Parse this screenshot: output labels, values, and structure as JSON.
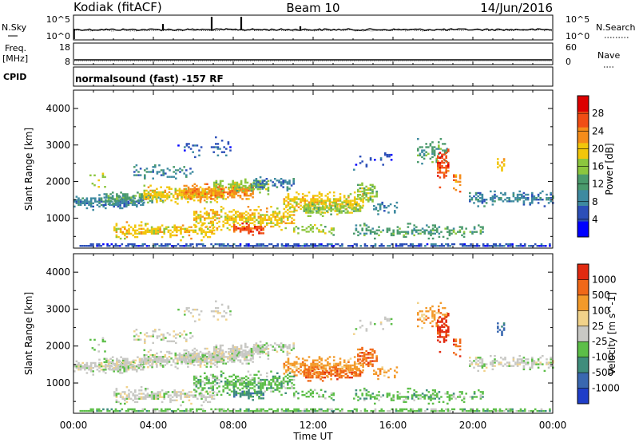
{
  "header": {
    "radar": "Kodiak (fitACF)",
    "beam": "Beam 10",
    "date": "14/Jun/2016"
  },
  "strips": {
    "nsky_label": "N.Sky",
    "nsky_ticks": [
      "10^5",
      "10^0"
    ],
    "nsearch_label": "N.Search",
    "nsearch_ticks": [
      "10^5",
      "10^0"
    ],
    "freq_label": "Freq.",
    "freq_unit": "[MHz]",
    "freq_ticks": [
      "18",
      "8"
    ],
    "nave_label": "Nave",
    "nave_ticks": [
      "60",
      "0"
    ],
    "cpid_label": "CPID",
    "cpid_text": "normalsound (fast) -157 RF"
  },
  "chart_data": [
    {
      "type": "heatmap",
      "name": "power",
      "ylabel": "Slant Range [km]",
      "xlabel": "",
      "yticks": [
        1000,
        2000,
        3000,
        4000
      ],
      "ylim": [
        180,
        4500
      ],
      "colorbar_label": "Power [dB]",
      "colorbar_ticks": [
        "28",
        "24",
        "20",
        "16",
        "12",
        "8",
        "4"
      ],
      "colors": [
        "#0000ff",
        "#2c4fb8",
        "#3e8aa0",
        "#4a9a6c",
        "#8cc63e",
        "#f2c60a",
        "#f58c1a",
        "#f14d14",
        "#dd0000"
      ]
    },
    {
      "type": "heatmap",
      "name": "velocity",
      "ylabel": "Slant Range [km]",
      "xlabel": "Time UT",
      "yticks": [
        1000,
        2000,
        3000,
        4000
      ],
      "ylim": [
        180,
        4500
      ],
      "xticks": [
        "00:00",
        "04:00",
        "08:00",
        "12:00",
        "16:00",
        "20:00",
        "00:00"
      ],
      "colorbar_label": "Velocity [m s^-1]",
      "colorbar_ticks": [
        "1000",
        "500",
        "100",
        "25",
        "-25",
        "-100",
        "-500",
        "-1000"
      ],
      "colors": [
        "#1f3ec8",
        "#3a68b0",
        "#3f8d7c",
        "#5cbe48",
        "#c8c8c4",
        "#f1d28a",
        "#f39a2a",
        "#f06818",
        "#e12a10"
      ]
    }
  ]
}
